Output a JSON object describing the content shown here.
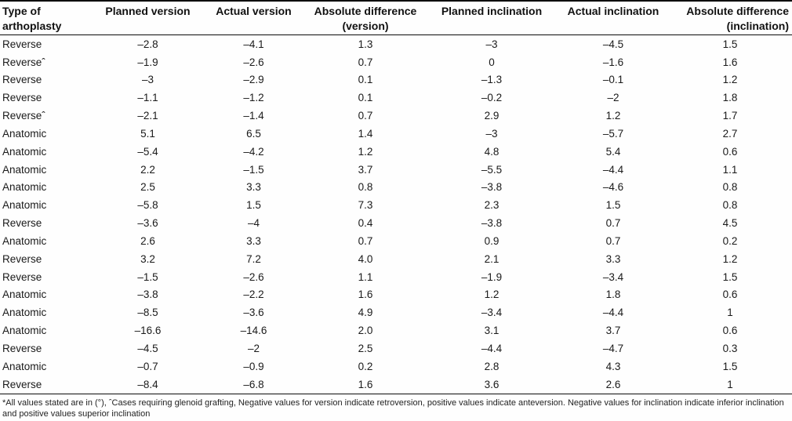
{
  "table": {
    "headers": [
      [
        "Type of",
        "arthoplasty"
      ],
      [
        "Planned version"
      ],
      [
        "Actual version"
      ],
      [
        "Absolute difference",
        "(version)"
      ],
      [
        "Planned inclination"
      ],
      [
        "Actual inclination"
      ],
      [
        "Absolute difference",
        "(inclination)"
      ]
    ],
    "rows": [
      [
        "Reverse",
        "–2.8",
        "–4.1",
        "1.3",
        "–3",
        "–4.5",
        "1.5"
      ],
      [
        "Reverseˆ",
        "–1.9",
        "–2.6",
        "0.7",
        "0",
        "–1.6",
        "1.6"
      ],
      [
        "Reverse",
        "–3",
        "–2.9",
        "0.1",
        "–1.3",
        "–0.1",
        "1.2"
      ],
      [
        "Reverse",
        "–1.1",
        "–1.2",
        "0.1",
        "–0.2",
        "–2",
        "1.8"
      ],
      [
        "Reverseˆ",
        "–2.1",
        "–1.4",
        "0.7",
        "2.9",
        "1.2",
        "1.7"
      ],
      [
        "Anatomic",
        "5.1",
        "6.5",
        "1.4",
        "–3",
        "–5.7",
        "2.7"
      ],
      [
        "Anatomic",
        "–5.4",
        "–4.2",
        "1.2",
        "4.8",
        "5.4",
        "0.6"
      ],
      [
        "Anatomic",
        "2.2",
        "–1.5",
        "3.7",
        "–5.5",
        "–4.4",
        "1.1"
      ],
      [
        "Anatomic",
        "2.5",
        "3.3",
        "0.8",
        "–3.8",
        "–4.6",
        "0.8"
      ],
      [
        "Anatomic",
        "–5.8",
        "1.5",
        "7.3",
        "2.3",
        "1.5",
        "0.8"
      ],
      [
        "Reverse",
        "–3.6",
        "–4",
        "0.4",
        "–3.8",
        "0.7",
        "4.5"
      ],
      [
        "Anatomic",
        "2.6",
        "3.3",
        "0.7",
        "0.9",
        "0.7",
        "0.2"
      ],
      [
        "Reverse",
        "3.2",
        "7.2",
        "4.0",
        "2.1",
        "3.3",
        "1.2"
      ],
      [
        "Reverse",
        "–1.5",
        "–2.6",
        "1.1",
        "–1.9",
        "–3.4",
        "1.5"
      ],
      [
        "Anatomic",
        "–3.8",
        "–2.2",
        "1.6",
        "1.2",
        "1.8",
        "0.6"
      ],
      [
        "Anatomic",
        "–8.5",
        "–3.6",
        "4.9",
        "–3.4",
        "–4.4",
        "1"
      ],
      [
        "Anatomic",
        "–16.6",
        "–14.6",
        "2.0",
        "3.1",
        "3.7",
        "0.6"
      ],
      [
        "Reverse",
        "–4.5",
        "–2",
        "2.5",
        "–4.4",
        "–4.7",
        "0.3"
      ],
      [
        "Anatomic",
        "–0.7",
        "–0.9",
        "0.2",
        "2.8",
        "4.3",
        "1.5"
      ],
      [
        "Reverse",
        "–8.4",
        "–6.8",
        "1.6",
        "3.6",
        "2.6",
        "1"
      ]
    ],
    "footnote": "*All values stated are in (°), ˆCases requiring glenoid grafting, Negative values for version indicate retroversion, positive values indicate anteversion. Negative values for inclination indicate inferior inclination and positive values superior inclination"
  }
}
